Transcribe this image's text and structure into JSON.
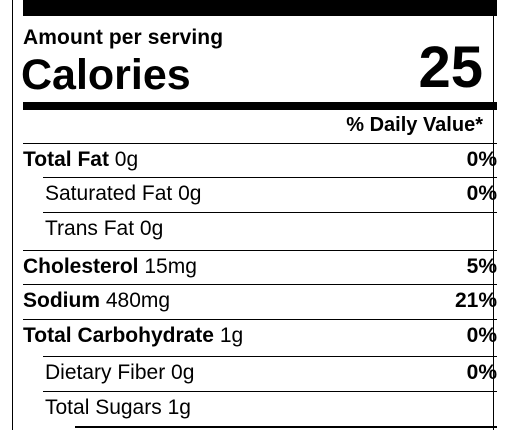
{
  "header": {
    "amount_per_serving": "Amount per serving",
    "calories_label": "Calories",
    "calories_value": "25",
    "daily_value_header": "% Daily Value*"
  },
  "nutrients": [
    {
      "name": "Total Fat",
      "amount": "0g",
      "dv": "0%",
      "bold": true
    },
    {
      "name": "Saturated Fat",
      "amount": "0g",
      "dv": "0%",
      "bold": false
    },
    {
      "name": "Trans Fat",
      "amount": "0g",
      "dv": "",
      "bold": false
    },
    {
      "name": "Cholesterol",
      "amount": "15mg",
      "dv": "5%",
      "bold": true
    },
    {
      "name": "Sodium",
      "amount": "480mg",
      "dv": "21%",
      "bold": true
    },
    {
      "name": "Total Carbohydrate",
      "amount": "1g",
      "dv": "0%",
      "bold": true
    },
    {
      "name": "Dietary Fiber",
      "amount": "0g",
      "dv": "0%",
      "bold": false
    },
    {
      "name": "Total Sugars",
      "amount": "1g",
      "dv": "",
      "bold": false
    }
  ],
  "colors": {
    "ink": "#000000",
    "background": "#ffffff"
  }
}
